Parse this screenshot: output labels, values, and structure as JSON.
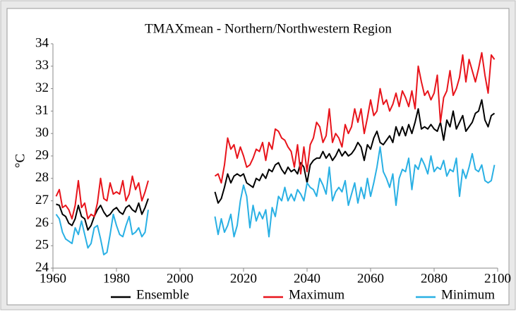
{
  "chart_data": {
    "type": "line",
    "title": "TMAXmean - Northern/Northwestern Region",
    "y_label": "°C",
    "x": [
      1961,
      1962,
      1963,
      1964,
      1965,
      1966,
      1967,
      1968,
      1969,
      1970,
      1971,
      1972,
      1973,
      1974,
      1975,
      1976,
      1977,
      1978,
      1979,
      1980,
      1981,
      1982,
      1983,
      1984,
      1985,
      1986,
      1987,
      1988,
      1989,
      1990,
      1991,
      1992,
      1993,
      1994,
      1995,
      1996,
      1997,
      1998,
      1999,
      2000,
      2001,
      2002,
      2003,
      2004,
      2005,
      2006,
      2007,
      2008,
      2009,
      2010,
      2011,
      2012,
      2013,
      2014,
      2015,
      2016,
      2017,
      2018,
      2019,
      2020,
      2021,
      2022,
      2023,
      2024,
      2025,
      2026,
      2027,
      2028,
      2029,
      2030,
      2031,
      2032,
      2033,
      2034,
      2035,
      2036,
      2037,
      2038,
      2039,
      2040,
      2041,
      2042,
      2043,
      2044,
      2045,
      2046,
      2047,
      2048,
      2049,
      2050,
      2051,
      2052,
      2053,
      2054,
      2055,
      2056,
      2057,
      2058,
      2059,
      2060,
      2061,
      2062,
      2063,
      2064,
      2065,
      2066,
      2067,
      2068,
      2069,
      2070,
      2071,
      2072,
      2073,
      2074,
      2075,
      2076,
      2077,
      2078,
      2079,
      2080,
      2081,
      2082,
      2083,
      2084,
      2085,
      2086,
      2087,
      2088,
      2089,
      2090,
      2091,
      2092,
      2093,
      2094,
      2095,
      2096,
      2097,
      2098,
      2099
    ],
    "series": [
      {
        "name": "Ensemble",
        "color": "#000000",
        "values": [
          26.85,
          26.8,
          26.4,
          26.3,
          26.0,
          25.9,
          26.2,
          26.8,
          26.3,
          26.2,
          25.7,
          25.9,
          26.3,
          26.6,
          26.8,
          26.5,
          26.3,
          26.4,
          26.6,
          26.7,
          26.5,
          26.4,
          26.7,
          26.8,
          26.6,
          26.5,
          26.9,
          26.4,
          26.7,
          27.1,
          null,
          null,
          null,
          null,
          null,
          null,
          null,
          null,
          null,
          null,
          null,
          null,
          null,
          null,
          null,
          null,
          null,
          null,
          null,
          null,
          27.4,
          26.9,
          27.1,
          27.6,
          28.2,
          27.8,
          28.1,
          28.2,
          28.1,
          28.2,
          27.8,
          27.7,
          27.6,
          28.0,
          27.9,
          28.2,
          28.0,
          28.4,
          28.3,
          28.6,
          28.7,
          28.4,
          28.2,
          28.5,
          28.3,
          28.4,
          28.2,
          28.7,
          28.5,
          27.8,
          28.6,
          28.8,
          28.9,
          28.9,
          29.2,
          28.9,
          29.1,
          28.8,
          29.0,
          29.3,
          29.0,
          29.2,
          29.0,
          29.1,
          29.3,
          29.6,
          29.4,
          28.8,
          29.5,
          29.3,
          29.8,
          30.1,
          29.6,
          29.5,
          29.7,
          29.9,
          29.6,
          30.3,
          29.9,
          30.3,
          29.9,
          30.4,
          30.0,
          30.5,
          31.1,
          30.2,
          30.3,
          30.2,
          30.4,
          30.2,
          30.1,
          30.5,
          29.7,
          30.6,
          30.3,
          31.0,
          30.2,
          30.5,
          30.8,
          30.1,
          30.3,
          30.5,
          30.9,
          31.0,
          31.5,
          30.6,
          30.3,
          30.8,
          30.9
        ]
      },
      {
        "name": "Maximum",
        "color": "#e8141b",
        "values": [
          27.2,
          27.5,
          26.7,
          26.8,
          26.6,
          26.2,
          26.8,
          27.9,
          26.7,
          26.9,
          26.2,
          26.4,
          26.3,
          26.9,
          28.0,
          27.1,
          27.0,
          27.8,
          27.3,
          27.4,
          27.3,
          27.9,
          27.0,
          27.3,
          28.1,
          27.5,
          27.8,
          27.0,
          27.4,
          27.9,
          null,
          null,
          null,
          null,
          null,
          null,
          null,
          null,
          null,
          null,
          null,
          null,
          null,
          null,
          null,
          null,
          null,
          null,
          null,
          null,
          28.1,
          28.2,
          27.8,
          28.6,
          29.8,
          29.3,
          29.5,
          28.9,
          29.4,
          29.0,
          28.5,
          28.6,
          28.9,
          29.3,
          29.2,
          29.6,
          28.8,
          29.6,
          29.3,
          30.2,
          30.1,
          29.8,
          29.7,
          29.4,
          29.2,
          28.5,
          29.5,
          28.2,
          29.4,
          28.3,
          29.5,
          29.8,
          30.5,
          30.3,
          29.6,
          29.9,
          31.1,
          29.6,
          30.0,
          29.8,
          29.4,
          30.4,
          30.0,
          30.3,
          31.1,
          30.5,
          31.1,
          30.0,
          30.7,
          31.5,
          30.8,
          31.0,
          32.0,
          31.3,
          31.5,
          31.0,
          31.3,
          31.8,
          31.2,
          31.9,
          31.6,
          31.2,
          31.9,
          31.1,
          33.0,
          32.3,
          31.7,
          31.9,
          31.5,
          31.8,
          32.6,
          30.5,
          31.6,
          31.9,
          32.8,
          31.7,
          32.0,
          32.5,
          33.5,
          32.3,
          33.3,
          32.8,
          32.3,
          32.9,
          33.6,
          32.6,
          31.8,
          33.5,
          33.3
        ]
      },
      {
        "name": "Minimum",
        "color": "#29b0e4",
        "values": [
          26.4,
          26.2,
          25.6,
          25.3,
          25.2,
          25.1,
          25.8,
          25.5,
          26.1,
          25.5,
          24.9,
          25.1,
          25.8,
          25.9,
          25.3,
          24.6,
          24.7,
          25.5,
          26.4,
          25.9,
          25.5,
          25.4,
          25.9,
          26.3,
          25.5,
          25.6,
          25.8,
          25.4,
          25.6,
          26.6,
          null,
          null,
          null,
          null,
          null,
          null,
          null,
          null,
          null,
          null,
          null,
          null,
          null,
          null,
          null,
          null,
          null,
          null,
          null,
          null,
          26.3,
          25.5,
          26.2,
          25.6,
          25.9,
          26.4,
          25.4,
          25.9,
          27.0,
          27.7,
          27.2,
          25.8,
          26.8,
          26.1,
          26.5,
          26.2,
          26.6,
          25.4,
          26.7,
          26.3,
          27.2,
          27.0,
          27.6,
          27.0,
          27.3,
          27.0,
          27.5,
          27.3,
          27.0,
          27.8,
          27.6,
          27.5,
          27.2,
          28.0,
          27.7,
          27.3,
          28.5,
          27.0,
          27.4,
          27.6,
          27.4,
          27.9,
          26.8,
          27.3,
          27.8,
          26.9,
          27.6,
          27.1,
          28.0,
          27.2,
          27.8,
          28.5,
          29.4,
          28.3,
          28.0,
          27.6,
          28.2,
          26.8,
          28.0,
          28.4,
          28.3,
          28.9,
          27.5,
          28.6,
          28.4,
          28.9,
          28.6,
          28.2,
          29.0,
          28.3,
          28.5,
          28.4,
          28.8,
          28.1,
          28.4,
          28.3,
          28.9,
          27.2,
          28.4,
          28.0,
          28.5,
          29.1,
          28.4,
          28.3,
          28.6,
          27.9,
          27.8,
          27.9,
          28.6
        ]
      }
    ],
    "xlim": [
      1960,
      2100
    ],
    "xticks": [
      1960,
      1980,
      2000,
      2020,
      2040,
      2060,
      2080,
      2100
    ],
    "ylim": [
      24,
      34
    ],
    "yticks": [
      24,
      25,
      26,
      27,
      28,
      29,
      30,
      31,
      32,
      33,
      34
    ],
    "grid": false
  }
}
